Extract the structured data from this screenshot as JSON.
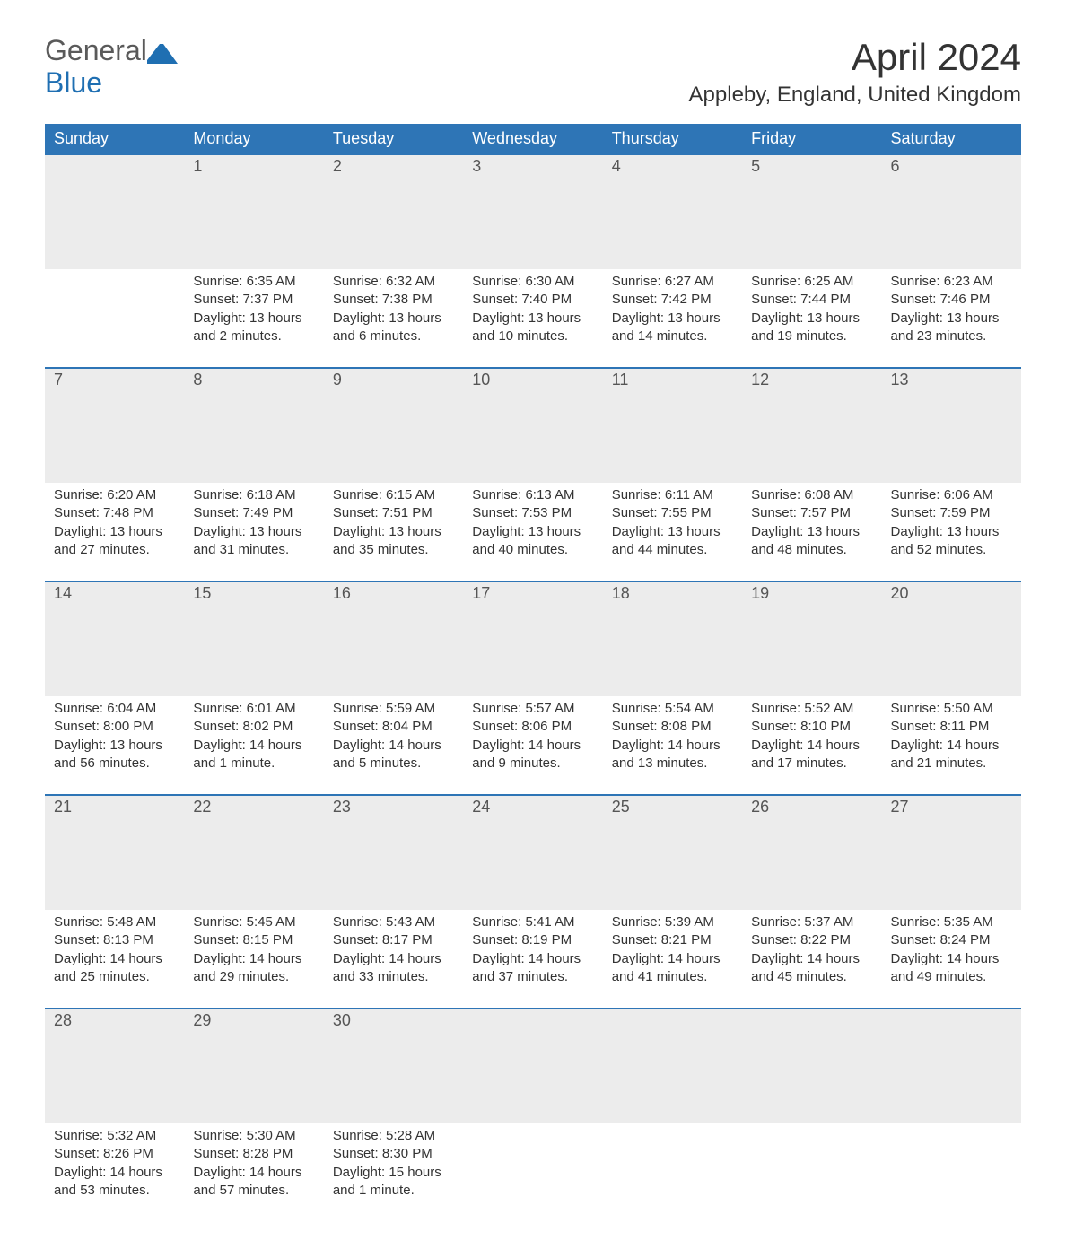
{
  "brand": {
    "text_general": "General",
    "text_blue": "Blue",
    "general_color": "#5a5a5a",
    "blue_color": "#1f6fb2",
    "icon_color": "#1f6fb2"
  },
  "title": "April 2024",
  "location": "Appleby, England, United Kingdom",
  "colors": {
    "header_bg": "#2e75b6",
    "header_text": "#ffffff",
    "daynum_bg": "#ececec",
    "row_border": "#2e75b6",
    "body_text": "#333333",
    "background": "#ffffff"
  },
  "fonts": {
    "title_size_pt": 32,
    "location_size_pt": 18,
    "header_size_pt": 14,
    "body_size_pt": 11
  },
  "layout": {
    "columns": 7,
    "rows": 5,
    "leading_blanks": 1
  },
  "day_headers": [
    "Sunday",
    "Monday",
    "Tuesday",
    "Wednesday",
    "Thursday",
    "Friday",
    "Saturday"
  ],
  "days": [
    {
      "n": 1,
      "sunrise": "6:35 AM",
      "sunset": "7:37 PM",
      "daylight": "13 hours and 2 minutes."
    },
    {
      "n": 2,
      "sunrise": "6:32 AM",
      "sunset": "7:38 PM",
      "daylight": "13 hours and 6 minutes."
    },
    {
      "n": 3,
      "sunrise": "6:30 AM",
      "sunset": "7:40 PM",
      "daylight": "13 hours and 10 minutes."
    },
    {
      "n": 4,
      "sunrise": "6:27 AM",
      "sunset": "7:42 PM",
      "daylight": "13 hours and 14 minutes."
    },
    {
      "n": 5,
      "sunrise": "6:25 AM",
      "sunset": "7:44 PM",
      "daylight": "13 hours and 19 minutes."
    },
    {
      "n": 6,
      "sunrise": "6:23 AM",
      "sunset": "7:46 PM",
      "daylight": "13 hours and 23 minutes."
    },
    {
      "n": 7,
      "sunrise": "6:20 AM",
      "sunset": "7:48 PM",
      "daylight": "13 hours and 27 minutes."
    },
    {
      "n": 8,
      "sunrise": "6:18 AM",
      "sunset": "7:49 PM",
      "daylight": "13 hours and 31 minutes."
    },
    {
      "n": 9,
      "sunrise": "6:15 AM",
      "sunset": "7:51 PM",
      "daylight": "13 hours and 35 minutes."
    },
    {
      "n": 10,
      "sunrise": "6:13 AM",
      "sunset": "7:53 PM",
      "daylight": "13 hours and 40 minutes."
    },
    {
      "n": 11,
      "sunrise": "6:11 AM",
      "sunset": "7:55 PM",
      "daylight": "13 hours and 44 minutes."
    },
    {
      "n": 12,
      "sunrise": "6:08 AM",
      "sunset": "7:57 PM",
      "daylight": "13 hours and 48 minutes."
    },
    {
      "n": 13,
      "sunrise": "6:06 AM",
      "sunset": "7:59 PM",
      "daylight": "13 hours and 52 minutes."
    },
    {
      "n": 14,
      "sunrise": "6:04 AM",
      "sunset": "8:00 PM",
      "daylight": "13 hours and 56 minutes."
    },
    {
      "n": 15,
      "sunrise": "6:01 AM",
      "sunset": "8:02 PM",
      "daylight": "14 hours and 1 minute."
    },
    {
      "n": 16,
      "sunrise": "5:59 AM",
      "sunset": "8:04 PM",
      "daylight": "14 hours and 5 minutes."
    },
    {
      "n": 17,
      "sunrise": "5:57 AM",
      "sunset": "8:06 PM",
      "daylight": "14 hours and 9 minutes."
    },
    {
      "n": 18,
      "sunrise": "5:54 AM",
      "sunset": "8:08 PM",
      "daylight": "14 hours and 13 minutes."
    },
    {
      "n": 19,
      "sunrise": "5:52 AM",
      "sunset": "8:10 PM",
      "daylight": "14 hours and 17 minutes."
    },
    {
      "n": 20,
      "sunrise": "5:50 AM",
      "sunset": "8:11 PM",
      "daylight": "14 hours and 21 minutes."
    },
    {
      "n": 21,
      "sunrise": "5:48 AM",
      "sunset": "8:13 PM",
      "daylight": "14 hours and 25 minutes."
    },
    {
      "n": 22,
      "sunrise": "5:45 AM",
      "sunset": "8:15 PM",
      "daylight": "14 hours and 29 minutes."
    },
    {
      "n": 23,
      "sunrise": "5:43 AM",
      "sunset": "8:17 PM",
      "daylight": "14 hours and 33 minutes."
    },
    {
      "n": 24,
      "sunrise": "5:41 AM",
      "sunset": "8:19 PM",
      "daylight": "14 hours and 37 minutes."
    },
    {
      "n": 25,
      "sunrise": "5:39 AM",
      "sunset": "8:21 PM",
      "daylight": "14 hours and 41 minutes."
    },
    {
      "n": 26,
      "sunrise": "5:37 AM",
      "sunset": "8:22 PM",
      "daylight": "14 hours and 45 minutes."
    },
    {
      "n": 27,
      "sunrise": "5:35 AM",
      "sunset": "8:24 PM",
      "daylight": "14 hours and 49 minutes."
    },
    {
      "n": 28,
      "sunrise": "5:32 AM",
      "sunset": "8:26 PM",
      "daylight": "14 hours and 53 minutes."
    },
    {
      "n": 29,
      "sunrise": "5:30 AM",
      "sunset": "8:28 PM",
      "daylight": "14 hours and 57 minutes."
    },
    {
      "n": 30,
      "sunrise": "5:28 AM",
      "sunset": "8:30 PM",
      "daylight": "15 hours and 1 minute."
    }
  ],
  "labels": {
    "sunrise_prefix": "Sunrise: ",
    "sunset_prefix": "Sunset: ",
    "daylight_prefix": "Daylight: "
  }
}
